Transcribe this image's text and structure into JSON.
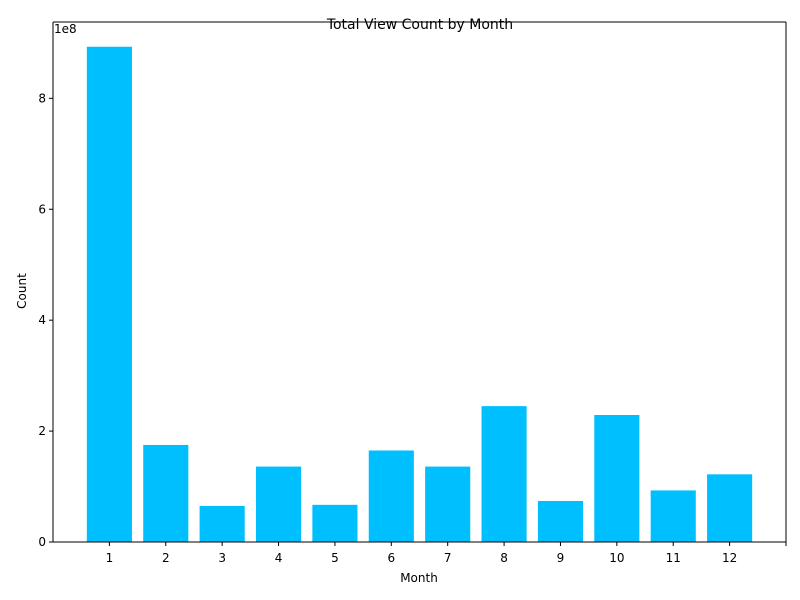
{
  "chart_data": {
    "type": "bar",
    "title": "Total View Count by Month",
    "xlabel": "Month",
    "ylabel": "Count",
    "y_offset_label": "1e8",
    "categories": [
      "1",
      "2",
      "3",
      "4",
      "5",
      "6",
      "7",
      "8",
      "9",
      "10",
      "11",
      "12"
    ],
    "values": [
      893000000,
      175000000,
      65000000,
      136000000,
      67000000,
      165000000,
      136000000,
      245000000,
      74000000,
      229000000,
      93000000,
      122000000
    ],
    "y_ticks": [
      0,
      200000000,
      400000000,
      600000000,
      800000000
    ],
    "y_tick_labels": [
      "0",
      "2",
      "4",
      "6",
      "8"
    ],
    "ylim": [
      0,
      937650000
    ],
    "bar_color": "#00BFFF",
    "grid": false
  }
}
